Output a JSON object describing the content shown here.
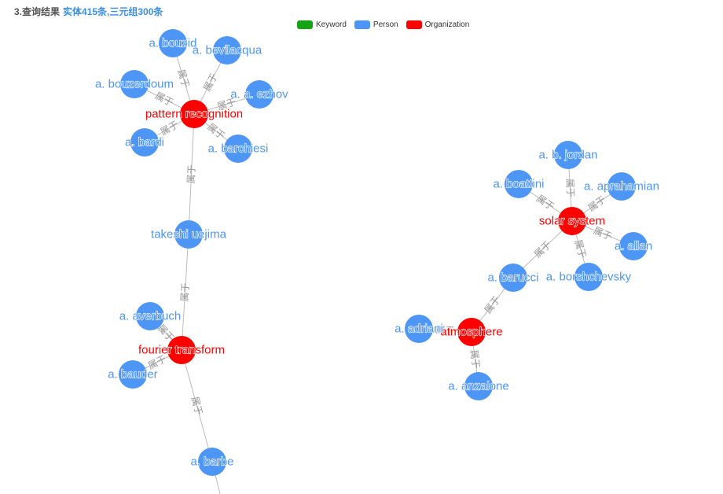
{
  "header": {
    "title": "3.查询结果",
    "stats": "实体415条,三元组300条"
  },
  "legend": [
    {
      "label": "Keyword",
      "color": "#16a316"
    },
    {
      "label": "Person",
      "color": "#4e96f5"
    },
    {
      "label": "Organization",
      "color": "#ff0000"
    }
  ],
  "colors": {
    "person": "#4e96f5",
    "organization": "#ff0000",
    "edge": "#bbbbbb",
    "edge_label": "#999999"
  },
  "nodes": [
    {
      "id": "pattern_recognition",
      "label": "pattern recognition",
      "type": "organization"
    },
    {
      "id": "bouzid",
      "label": "a. bouzid",
      "type": "person"
    },
    {
      "id": "bevilacqua",
      "label": "a. bevilacqua",
      "type": "person"
    },
    {
      "id": "bouzerdoum",
      "label": "a. bouzerdoum",
      "type": "person"
    },
    {
      "id": "ezhov",
      "label": "a. a. ezhov",
      "type": "person"
    },
    {
      "id": "bardi",
      "label": "a. bardi",
      "type": "person"
    },
    {
      "id": "barchiesi",
      "label": "a. barchiesi",
      "type": "person"
    },
    {
      "id": "uejima",
      "label": "takeshi uejima",
      "type": "person"
    },
    {
      "id": "fourier",
      "label": "fourier transform",
      "type": "organization"
    },
    {
      "id": "averbuch",
      "label": "a. averbuch",
      "type": "person"
    },
    {
      "id": "bauder",
      "label": "a. bauder",
      "type": "person"
    },
    {
      "id": "barbe",
      "label": "a. barbe",
      "type": "person"
    },
    {
      "id": "solar",
      "label": "solar system",
      "type": "organization"
    },
    {
      "id": "jordan",
      "label": "a. b. jordan",
      "type": "person"
    },
    {
      "id": "boattini",
      "label": "a. boattini",
      "type": "person"
    },
    {
      "id": "aprahamian",
      "label": "a. aprahamian",
      "type": "person"
    },
    {
      "id": "allan",
      "label": "a. allan",
      "type": "person"
    },
    {
      "id": "borshchevsky",
      "label": "a. borshchevsky",
      "type": "person"
    },
    {
      "id": "barucci",
      "label": "a. barucci",
      "type": "person"
    },
    {
      "id": "atmosphere",
      "label": "atmosphere",
      "type": "organization"
    },
    {
      "id": "adriani",
      "label": "a. adriani",
      "type": "person"
    },
    {
      "id": "anzalone",
      "label": "a. anzalone",
      "type": "person"
    }
  ],
  "edges": [
    {
      "from": "bouzid",
      "to": "pattern_recognition",
      "label": "属于"
    },
    {
      "from": "bevilacqua",
      "to": "pattern_recognition",
      "label": "属于"
    },
    {
      "from": "bouzerdoum",
      "to": "pattern_recognition",
      "label": "属于"
    },
    {
      "from": "ezhov",
      "to": "pattern_recognition",
      "label": "属于"
    },
    {
      "from": "bardi",
      "to": "pattern_recognition",
      "label": "属于"
    },
    {
      "from": "barchiesi",
      "to": "pattern_recognition",
      "label": "属于"
    },
    {
      "from": "uejima",
      "to": "pattern_recognition",
      "label": "属于"
    },
    {
      "from": "uejima",
      "to": "fourier",
      "label": "属于"
    },
    {
      "from": "averbuch",
      "to": "fourier",
      "label": "属于"
    },
    {
      "from": "bauder",
      "to": "fourier",
      "label": "属于"
    },
    {
      "from": "barbe",
      "to": "fourier",
      "label": "属于"
    },
    {
      "from": "jordan",
      "to": "solar",
      "label": "属于"
    },
    {
      "from": "boattini",
      "to": "solar",
      "label": "属于"
    },
    {
      "from": "aprahamian",
      "to": "solar",
      "label": "属于"
    },
    {
      "from": "allan",
      "to": "solar",
      "label": "属于"
    },
    {
      "from": "borshchevsky",
      "to": "solar",
      "label": "属于"
    },
    {
      "from": "barucci",
      "to": "solar",
      "label": "属于"
    },
    {
      "from": "barucci",
      "to": "atmosphere",
      "label": "属于"
    },
    {
      "from": "adriani",
      "to": "atmosphere",
      "label": "属于"
    },
    {
      "from": "anzalone",
      "to": "atmosphere",
      "label": "属于"
    }
  ]
}
